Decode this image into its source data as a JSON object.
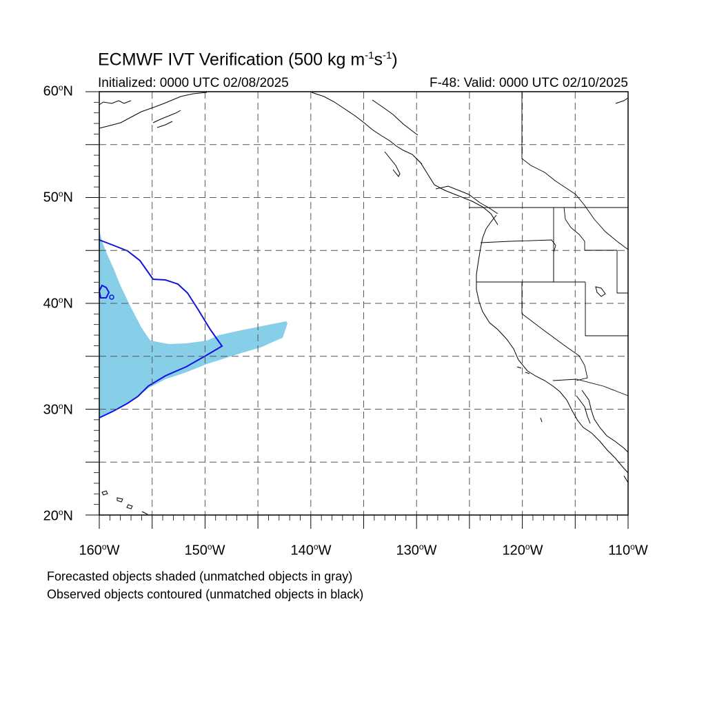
{
  "title": {
    "main": "ECMWF IVT Verification (500 kg m",
    "exp1": "-1",
    "mid": "s",
    "exp2": "-1",
    "close": ")"
  },
  "initialized": "Initialized: 0000 UTC 02/08/2025",
  "valid": "F-48: Valid: 0000 UTC 02/10/2025",
  "lat_labels": [
    {
      "value": "60",
      "deg": "o",
      "hemi": "N"
    },
    {
      "value": "50",
      "deg": "o",
      "hemi": "N"
    },
    {
      "value": "40",
      "deg": "o",
      "hemi": "N"
    },
    {
      "value": "30",
      "deg": "o",
      "hemi": "N"
    },
    {
      "value": "20",
      "deg": "o",
      "hemi": "N"
    }
  ],
  "lon_labels": [
    {
      "value": "160",
      "deg": "o",
      "hemi": "W"
    },
    {
      "value": "150",
      "deg": "o",
      "hemi": "W"
    },
    {
      "value": "140",
      "deg": "o",
      "hemi": "W"
    },
    {
      "value": "130",
      "deg": "o",
      "hemi": "W"
    },
    {
      "value": "120",
      "deg": "o",
      "hemi": "W"
    },
    {
      "value": "110",
      "deg": "o",
      "hemi": "W"
    }
  ],
  "notes": [
    "Forecasted objects shaded (unmatched objects in gray)",
    "Observed objects contoured (unmatched objects in black)"
  ],
  "colors": {
    "forecast_fill": "#87cee9",
    "observed_contour": "#1010e0",
    "coastline": "#000000",
    "grid": "#555555"
  },
  "map_extent": {
    "lon_min": -160,
    "lon_max": -110,
    "lat_min": 20,
    "lat_max": 60
  },
  "grid_spacing_deg": 5
}
